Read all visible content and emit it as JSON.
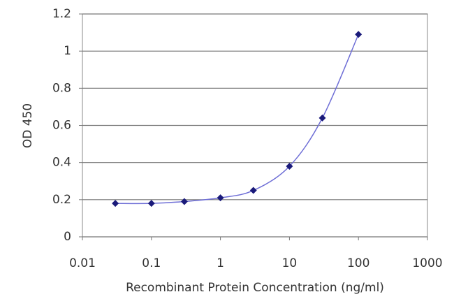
{
  "chart_data": {
    "type": "scatter",
    "x_label": "Recombinant Protein Concentration (ng/ml)",
    "y_label": "OD 450",
    "xscale": "log",
    "x": [
      0.03,
      0.1,
      0.3,
      1,
      3,
      10,
      30,
      100
    ],
    "series": [
      {
        "color": "#1a1a7a",
        "line_color": "#6e6ed6",
        "values": [
          0.18,
          0.18,
          0.19,
          0.21,
          0.25,
          0.38,
          0.64,
          1.09
        ]
      }
    ],
    "xlim": [
      0.01,
      1000
    ],
    "xticks": [
      0.01,
      0.1,
      1,
      10,
      100,
      1000
    ],
    "ylim": [
      0,
      1.2
    ],
    "yticks": [
      0,
      0.2,
      0.4,
      0.6,
      0.8,
      1,
      1.2
    ],
    "grid": true
  }
}
